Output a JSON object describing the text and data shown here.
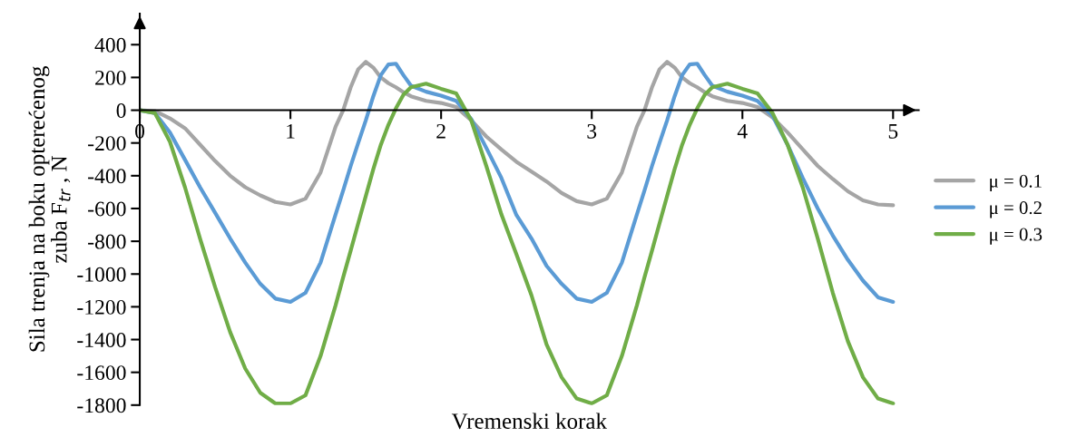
{
  "chart_data": {
    "type": "line",
    "xlabel": "Vremenski korak",
    "ylabel": "Sila trenja na boku opterećenog\nzuba F$_{tr}$ , N",
    "x": [
      0,
      0.1,
      0.2,
      0.3,
      0.4,
      0.5,
      0.6,
      0.7,
      0.8,
      0.9,
      1.0,
      1.1,
      1.2,
      1.3,
      1.35,
      1.4,
      1.45,
      1.5,
      1.55,
      1.6,
      1.65,
      1.7,
      1.75,
      1.8,
      1.9,
      2.0,
      2.1,
      2.2,
      2.3,
      2.4,
      2.5,
      2.6,
      2.7,
      2.8,
      2.9,
      3.0,
      3.1,
      3.2,
      3.3,
      3.35,
      3.4,
      3.45,
      3.5,
      3.55,
      3.6,
      3.65,
      3.7,
      3.75,
      3.8,
      3.9,
      4.0,
      4.1,
      4.2,
      4.3,
      4.4,
      4.5,
      4.6,
      4.7,
      4.8,
      4.9,
      5.0
    ],
    "series": [
      {
        "name": "μ = 0.1",
        "color": "#a5a5a5",
        "values": [
          0,
          -5,
          -50,
          -110,
          -210,
          -310,
          -400,
          -470,
          -520,
          -560,
          -575,
          -540,
          -380,
          -100,
          0,
          140,
          250,
          295,
          260,
          200,
          165,
          140,
          110,
          85,
          57,
          44,
          20,
          -62,
          -160,
          -240,
          -315,
          -375,
          -435,
          -505,
          -555,
          -575,
          -540,
          -380,
          -100,
          0,
          140,
          250,
          295,
          260,
          200,
          165,
          140,
          110,
          85,
          57,
          44,
          20,
          -44,
          -136,
          -238,
          -340,
          -420,
          -495,
          -550,
          -575,
          -580
        ]
      },
      {
        "name": "μ = 0.2",
        "color": "#5b9bd5",
        "values": [
          0,
          -17,
          -136,
          -302,
          -470,
          -626,
          -783,
          -930,
          -1060,
          -1150,
          -1170,
          -1115,
          -930,
          -635,
          -490,
          -340,
          -200,
          -63,
          85,
          214,
          279,
          284,
          214,
          150,
          113,
          89,
          57,
          -54,
          -230,
          -413,
          -640,
          -783,
          -950,
          -1060,
          -1150,
          -1170,
          -1115,
          -930,
          -635,
          -490,
          -340,
          -200,
          -63,
          85,
          214,
          279,
          284,
          214,
          150,
          113,
          89,
          57,
          -35,
          -211,
          -413,
          -600,
          -765,
          -913,
          -1040,
          -1142,
          -1170
        ]
      },
      {
        "name": "μ = 0.3",
        "color": "#70ad47",
        "values": [
          0,
          -17,
          -192,
          -470,
          -783,
          -1080,
          -1355,
          -1577,
          -1725,
          -1790,
          -1790,
          -1740,
          -1500,
          -1190,
          -1020,
          -857,
          -690,
          -525,
          -360,
          -211,
          -90,
          11,
          94,
          140,
          162,
          131,
          103,
          -62,
          -340,
          -635,
          -880,
          -1130,
          -1430,
          -1630,
          -1760,
          -1790,
          -1740,
          -1500,
          -1190,
          -1020,
          -857,
          -690,
          -525,
          -360,
          -211,
          -90,
          11,
          94,
          140,
          162,
          131,
          103,
          -17,
          -211,
          -470,
          -783,
          -1115,
          -1410,
          -1630,
          -1760,
          -1790
        ]
      }
    ],
    "xlim": [
      0,
      5.17
    ],
    "xticks": [
      0,
      1,
      2,
      3,
      4,
      5
    ],
    "ylim": [
      -1800,
      590
    ],
    "yticks": [
      -1800,
      -1600,
      -1400,
      -1200,
      -1000,
      -800,
      -600,
      -400,
      -200,
      0,
      200,
      400
    ],
    "grid": false,
    "legend": "right",
    "marker": "none",
    "line_style": "solid"
  }
}
